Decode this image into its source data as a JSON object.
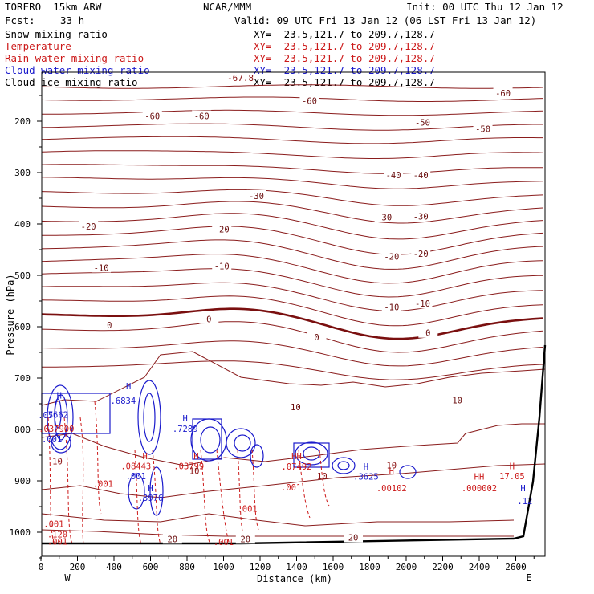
{
  "header": {
    "model": "TORERO  15km ARW",
    "center": "NCAR/MMM",
    "init": "Init: 00 UTC Thu 12 Jan 12",
    "fcst_label": "Fcst:",
    "fcst_value": "33 h",
    "valid": "Valid: 09 UTC Fri 13 Jan 12 (06 LST Fri 13 Jan 12)"
  },
  "fields": [
    {
      "name": "Snow mixing ratio",
      "xy": "",
      "color": "#000000"
    },
    {
      "name": "Temperature",
      "xy": "XY=  23.5,121.7 to 209.7,128.7",
      "color": "#cc1a1a"
    },
    {
      "name": "Rain water mixing ratio",
      "xy": "XY=  23.5,121.7 to 209.7,128.7",
      "color": "#cc1a1a"
    },
    {
      "name": "Cloud water mixing ratio",
      "xy": "XY=  23.5,121.7 to 209.7,128.7",
      "color": "#1a1acc"
    },
    {
      "name": "Cloud ice mixing ratio",
      "xy": "XY=  23.5,121.7 to 209.7,128.7",
      "color": "#000000"
    }
  ],
  "snow_xy": "XY=  23.5,121.7 to 209.7,128.7",
  "chart_data": {
    "type": "contour cross-section",
    "xlabel": "Distance (km)",
    "ylabel": "Pressure (hPa)",
    "xlim": [
      0,
      2780
    ],
    "ylim": [
      1050,
      100
    ],
    "x_ticks": [
      0,
      200,
      400,
      600,
      800,
      1000,
      1200,
      1400,
      1600,
      1800,
      2000,
      2200,
      2400,
      2600
    ],
    "y_ticks": [
      200,
      300,
      400,
      500,
      600,
      700,
      800,
      900,
      1000
    ],
    "x_end_labels": {
      "left": "W",
      "right": "E"
    },
    "temperature_isotherms_C": [
      {
        "value": -60,
        "labels": [
          {
            "x": 610,
            "p": 190,
            "text": "-60"
          },
          {
            "x": 880,
            "p": 190,
            "text": "-60"
          },
          {
            "x": 1470,
            "p": 160,
            "text": "-60"
          },
          {
            "x": 2530,
            "p": 145,
            "text": "-60"
          }
        ]
      },
      {
        "value": -50,
        "labels": [
          {
            "x": 2090,
            "p": 202,
            "text": "-50"
          },
          {
            "x": 2420,
            "p": 215,
            "text": "-50"
          }
        ]
      },
      {
        "value": -40,
        "labels": [
          {
            "x": 1930,
            "p": 305,
            "text": "-40"
          },
          {
            "x": 2080,
            "p": 305,
            "text": "-40"
          }
        ]
      },
      {
        "value": -30,
        "labels": [
          {
            "x": 1180,
            "p": 345,
            "text": "-30"
          },
          {
            "x": 1880,
            "p": 387,
            "text": "-30"
          },
          {
            "x": 2080,
            "p": 385,
            "text": "-30"
          }
        ]
      },
      {
        "value": -20,
        "labels": [
          {
            "x": 260,
            "p": 405,
            "text": "-20"
          },
          {
            "x": 990,
            "p": 410,
            "text": "-20"
          },
          {
            "x": 1920,
            "p": 463,
            "text": "-20"
          },
          {
            "x": 2080,
            "p": 458,
            "text": "-20"
          }
        ]
      },
      {
        "value": -10,
        "labels": [
          {
            "x": 330,
            "p": 485,
            "text": "-10"
          },
          {
            "x": 990,
            "p": 482,
            "text": "-10"
          },
          {
            "x": 1920,
            "p": 562,
            "text": "-10"
          },
          {
            "x": 2090,
            "p": 555,
            "text": "-10"
          }
        ]
      },
      {
        "value": 0,
        "labels": [
          {
            "x": 375,
            "p": 597,
            "text": "0"
          },
          {
            "x": 920,
            "p": 585,
            "text": "0"
          },
          {
            "x": 1510,
            "p": 620,
            "text": "0"
          },
          {
            "x": 2120,
            "p": 612,
            "text": "0"
          }
        ]
      },
      {
        "value": 10,
        "labels": [
          {
            "x": 1395,
            "p": 756,
            "text": "10"
          },
          {
            "x": 2280,
            "p": 743,
            "text": "10"
          }
        ]
      },
      {
        "value": 20,
        "labels": [
          {
            "x": 720,
            "p": 1013,
            "text": "20"
          },
          {
            "x": 1120,
            "p": 1013,
            "text": "20"
          },
          {
            "x": 1710,
            "p": 1010,
            "text": "20"
          }
        ]
      }
    ],
    "top_annotation": "-67.8",
    "extrema_labels": [
      {
        "x": 100,
        "p": 740,
        "text": "H",
        "color": "#1a1acc"
      },
      {
        "x": 80,
        "p": 777,
        "text": ".7662",
        "color": "#1a1acc"
      },
      {
        "x": 25,
        "p": 778,
        "text": ".05",
        "color": "#1a1acc"
      },
      {
        "x": 85,
        "p": 805,
        "text": ".037900",
        "color": "#cc1a1a"
      },
      {
        "x": 60,
        "p": 825,
        "text": ".001",
        "color": "#1a1acc"
      },
      {
        "x": 480,
        "p": 722,
        "text": "H",
        "color": "#1a1acc"
      },
      {
        "x": 450,
        "p": 750,
        "text": ".6834",
        "color": "#1a1acc"
      },
      {
        "x": 570,
        "p": 858,
        "text": "H",
        "color": "#cc1a1a"
      },
      {
        "x": 520,
        "p": 877,
        "text": ".08443",
        "color": "#cc1a1a"
      },
      {
        "x": 520,
        "p": 897,
        "text": ".001",
        "color": "#1a1acc"
      },
      {
        "x": 600,
        "p": 920,
        "text": "H",
        "color": "#1a1acc"
      },
      {
        "x": 600,
        "p": 939,
        "text": ".3976",
        "color": "#1a1acc"
      },
      {
        "x": 790,
        "p": 784,
        "text": "H",
        "color": "#1a1acc"
      },
      {
        "x": 790,
        "p": 805,
        "text": ".7289",
        "color": "#1a1acc"
      },
      {
        "x": 850,
        "p": 858,
        "text": "H",
        "color": "#cc1a1a"
      },
      {
        "x": 810,
        "p": 877,
        "text": ".03799",
        "color": "#cc1a1a"
      },
      {
        "x": 1400,
        "p": 858,
        "text": "HH",
        "color": "#cc1a1a"
      },
      {
        "x": 1400,
        "p": 878,
        "text": ".07492",
        "color": "#cc1a1a"
      },
      {
        "x": 1370,
        "p": 919,
        "text": ".001",
        "color": "#cc1a1a"
      },
      {
        "x": 1780,
        "p": 878,
        "text": "H",
        "color": "#1a1acc"
      },
      {
        "x": 1780,
        "p": 898,
        "text": ".3625",
        "color": "#1a1acc"
      },
      {
        "x": 1920,
        "p": 887,
        "text": "H",
        "color": "#cc1a1a"
      },
      {
        "x": 1920,
        "p": 920,
        "text": ".00102",
        "color": "#cc1a1a"
      },
      {
        "x": 2400,
        "p": 898,
        "text": "HH",
        "color": "#cc1a1a"
      },
      {
        "x": 2400,
        "p": 920,
        "text": ".000002",
        "color": "#cc1a1a"
      },
      {
        "x": 2580,
        "p": 877,
        "text": "H",
        "color": "#cc1a1a"
      },
      {
        "x": 2580,
        "p": 897,
        "text": "17.05",
        "color": "#cc1a1a"
      },
      {
        "x": 2640,
        "p": 920,
        "text": "H",
        "color": "#1a1acc"
      },
      {
        "x": 2650,
        "p": 945,
        "text": ".12",
        "color": "#1a1acc"
      },
      {
        "x": 70,
        "p": 990,
        "text": ".001",
        "color": "#cc1a1a"
      },
      {
        "x": 90,
        "p": 1010,
        "text": ".120",
        "color": "#cc1a1a"
      },
      {
        "x": 90,
        "p": 1024,
        "text": ".001",
        "color": "#cc1a1a"
      },
      {
        "x": 1000,
        "p": 1025,
        "text": ".001",
        "color": "#cc1a1a"
      },
      {
        "x": 1130,
        "p": 960,
        "text": ".001",
        "color": "#cc1a1a"
      },
      {
        "x": 340,
        "p": 912,
        "text": ".001",
        "color": "#cc1a1a"
      },
      {
        "x": 90,
        "p": 868,
        "text": "10",
        "color": "#8a1010"
      },
      {
        "x": 840,
        "p": 887,
        "text": "10",
        "color": "#8a1010"
      },
      {
        "x": 1540,
        "p": 897,
        "text": "10",
        "color": "#8a1010"
      },
      {
        "x": 1920,
        "p": 876,
        "text": "10",
        "color": "#8a1010"
      }
    ]
  }
}
